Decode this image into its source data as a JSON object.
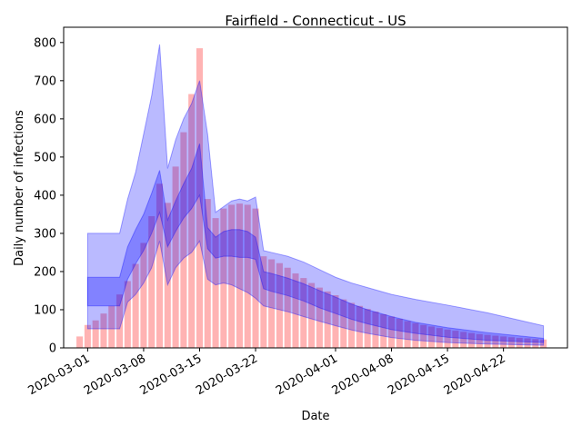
{
  "chart_data": {
    "type": "bar",
    "title": "Fairfield - Connecticut - US",
    "xlabel": "Date",
    "ylabel": "Daily number of infections",
    "ylim": [
      0,
      840
    ],
    "yticks": [
      0,
      100,
      200,
      300,
      400,
      500,
      600,
      700,
      800
    ],
    "xticks": [
      "2020-03-01",
      "2020-03-08",
      "2020-03-15",
      "2020-03-22",
      "2020-04-01",
      "2020-04-08",
      "2020-04-15",
      "2020-04-22"
    ],
    "grid": false,
    "legend": "none",
    "colors": {
      "bars": "#ffb3b3",
      "band": "#0000ff"
    },
    "dates": [
      "2020-02-29",
      "2020-03-01",
      "2020-03-02",
      "2020-03-03",
      "2020-03-04",
      "2020-03-05",
      "2020-03-06",
      "2020-03-07",
      "2020-03-08",
      "2020-03-09",
      "2020-03-10",
      "2020-03-11",
      "2020-03-12",
      "2020-03-13",
      "2020-03-14",
      "2020-03-15",
      "2020-03-16",
      "2020-03-17",
      "2020-03-18",
      "2020-03-19",
      "2020-03-20",
      "2020-03-21",
      "2020-03-22",
      "2020-03-23",
      "2020-03-24",
      "2020-03-25",
      "2020-03-26",
      "2020-03-27",
      "2020-03-28",
      "2020-03-29",
      "2020-03-30",
      "2020-03-31",
      "2020-04-01",
      "2020-04-02",
      "2020-04-03",
      "2020-04-04",
      "2020-04-05",
      "2020-04-06",
      "2020-04-07",
      "2020-04-08",
      "2020-04-09",
      "2020-04-10",
      "2020-04-11",
      "2020-04-12",
      "2020-04-13",
      "2020-04-14",
      "2020-04-15",
      "2020-04-16",
      "2020-04-17",
      "2020-04-18",
      "2020-04-19",
      "2020-04-20",
      "2020-04-21",
      "2020-04-22",
      "2020-04-23",
      "2020-04-24",
      "2020-04-25",
      "2020-04-26",
      "2020-04-27"
    ],
    "values": [
      30,
      60,
      72,
      90,
      110,
      140,
      175,
      220,
      275,
      345,
      430,
      380,
      475,
      565,
      665,
      785,
      390,
      340,
      365,
      375,
      378,
      375,
      365,
      240,
      232,
      222,
      210,
      195,
      183,
      170,
      158,
      148,
      138,
      127,
      118,
      110,
      102,
      95,
      88,
      82,
      76,
      70,
      65,
      60,
      56,
      52,
      48,
      45,
      42,
      39,
      36,
      34,
      32,
      30,
      28,
      26,
      25,
      23,
      22
    ],
    "band_dates": [
      "2020-03-01",
      "2020-03-05",
      "2020-03-06",
      "2020-03-07",
      "2020-03-08",
      "2020-03-09",
      "2020-03-10",
      "2020-03-11",
      "2020-03-12",
      "2020-03-13",
      "2020-03-14",
      "2020-03-15",
      "2020-03-16",
      "2020-03-17",
      "2020-03-18",
      "2020-03-19",
      "2020-03-20",
      "2020-03-21",
      "2020-03-22",
      "2020-03-23",
      "2020-03-24",
      "2020-03-26",
      "2020-03-28",
      "2020-03-30",
      "2020-04-01",
      "2020-04-03",
      "2020-04-05",
      "2020-04-08",
      "2020-04-11",
      "2020-04-15",
      "2020-04-20",
      "2020-04-27"
    ],
    "outer_lower": [
      50,
      50,
      120,
      140,
      170,
      210,
      280,
      165,
      210,
      235,
      250,
      280,
      180,
      165,
      170,
      165,
      155,
      145,
      130,
      110,
      105,
      95,
      82,
      70,
      58,
      47,
      38,
      27,
      20,
      14,
      10,
      7
    ],
    "outer_upper": [
      300,
      300,
      390,
      460,
      560,
      660,
      795,
      470,
      545,
      600,
      640,
      700,
      560,
      355,
      370,
      385,
      390,
      385,
      395,
      255,
      250,
      240,
      225,
      205,
      185,
      170,
      158,
      140,
      127,
      112,
      92,
      58
    ],
    "inner_lower": [
      110,
      110,
      180,
      220,
      255,
      300,
      355,
      265,
      305,
      340,
      365,
      400,
      260,
      235,
      240,
      240,
      237,
      237,
      232,
      155,
      148,
      137,
      123,
      105,
      90,
      75,
      63,
      48,
      38,
      28,
      20,
      14
    ],
    "inner_upper": [
      185,
      185,
      265,
      310,
      350,
      405,
      465,
      335,
      385,
      430,
      470,
      535,
      315,
      290,
      305,
      310,
      310,
      305,
      290,
      200,
      195,
      183,
      168,
      150,
      133,
      115,
      100,
      82,
      67,
      53,
      40,
      25
    ]
  }
}
